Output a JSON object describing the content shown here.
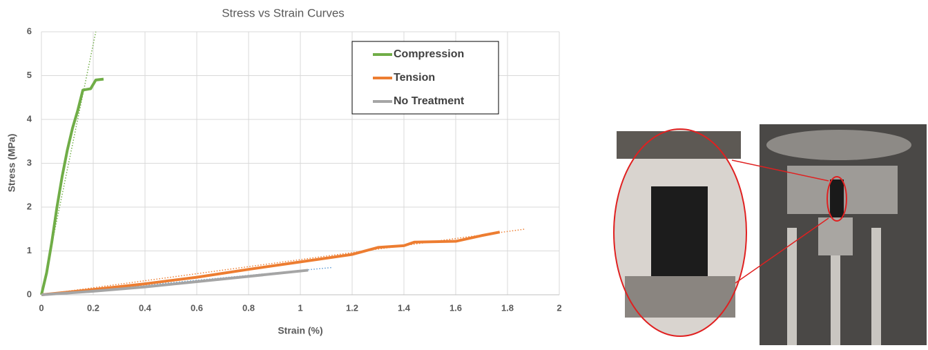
{
  "chart_data": {
    "type": "line",
    "title": "Stress vs Strain Curves",
    "x_label": "Strain (%)",
    "y_label": "Stress (MPa)",
    "xlim": [
      0,
      2
    ],
    "xticks": [
      0,
      0.2,
      0.4,
      0.6,
      0.8,
      1,
      1.2,
      1.4,
      1.6,
      1.8,
      2
    ],
    "ylim": [
      0,
      6
    ],
    "yticks": [
      0,
      1,
      2,
      3,
      4,
      5,
      6
    ],
    "grid": true,
    "legend": "upper right",
    "series": [
      {
        "name": "Compression",
        "color": "#70ad47",
        "x": [
          0,
          0.02,
          0.04,
          0.06,
          0.08,
          0.1,
          0.12,
          0.14,
          0.16,
          0.19,
          0.21,
          0.24
        ],
        "values": [
          0,
          0.5,
          1.2,
          2,
          2.7,
          3.3,
          3.8,
          4.2,
          4.67,
          4.7,
          4.9,
          4.92
        ]
      },
      {
        "name": "Tension",
        "color": "#ed7d31",
        "x": [
          0,
          0.2,
          0.4,
          0.6,
          0.8,
          1.0,
          1.2,
          1.3,
          1.4,
          1.44,
          1.6,
          1.7,
          1.77
        ],
        "values": [
          0,
          0.12,
          0.25,
          0.4,
          0.58,
          0.75,
          0.92,
          1.08,
          1.12,
          1.2,
          1.22,
          1.35,
          1.43
        ]
      },
      {
        "name": "No Treatment",
        "color": "#a5a5a5",
        "x": [
          0,
          0.2,
          0.4,
          0.6,
          0.8,
          1.03
        ],
        "values": [
          0,
          0.08,
          0.18,
          0.3,
          0.42,
          0.56
        ]
      }
    ],
    "trendlines": [
      {
        "color": "#70ad47",
        "x": [
          0,
          0.21
        ],
        "values": [
          0,
          6
        ]
      },
      {
        "color": "#ed7d31",
        "x": [
          0,
          1.87
        ],
        "values": [
          0,
          1.5
        ]
      },
      {
        "color": "#5b9bd5",
        "x": [
          0,
          1.12
        ],
        "values": [
          0,
          0.62
        ]
      }
    ]
  }
}
